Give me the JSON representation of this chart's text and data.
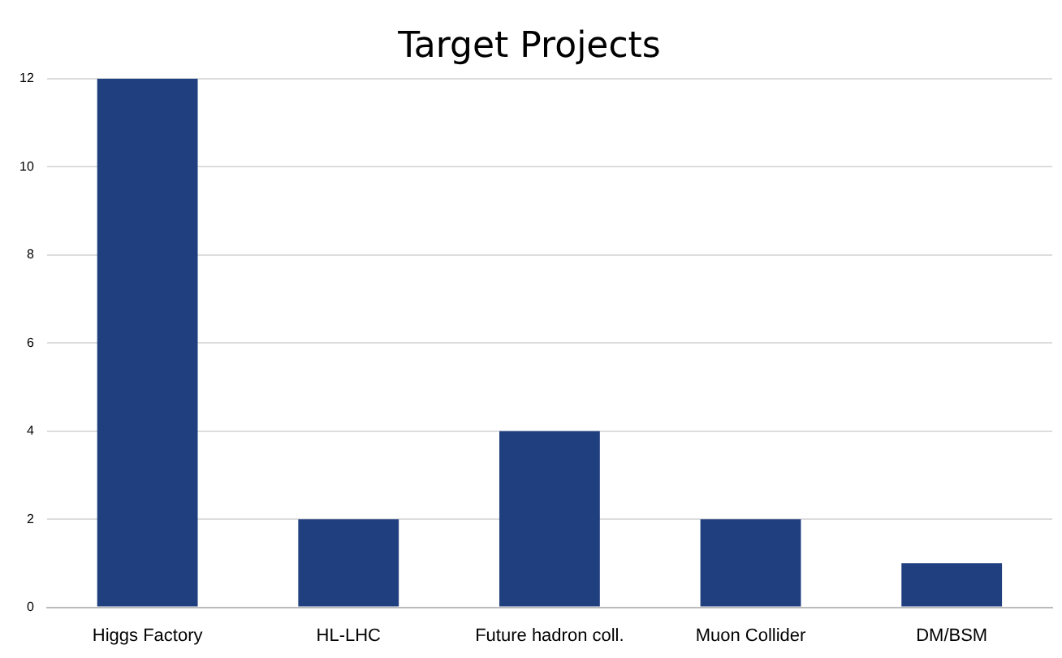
{
  "chart_data": {
    "type": "bar",
    "title": "Target Projects",
    "categories": [
      "Higgs Factory",
      "HL-LHC",
      "Future hadron coll.",
      "Muon Collider",
      "DM/BSM"
    ],
    "values": [
      12,
      2,
      4,
      2,
      1
    ],
    "color": "#203f7f",
    "ylim": [
      0,
      12
    ],
    "yticks": [
      0,
      2,
      4,
      6,
      8,
      10,
      12
    ],
    "grid": "y",
    "legend": false
  }
}
